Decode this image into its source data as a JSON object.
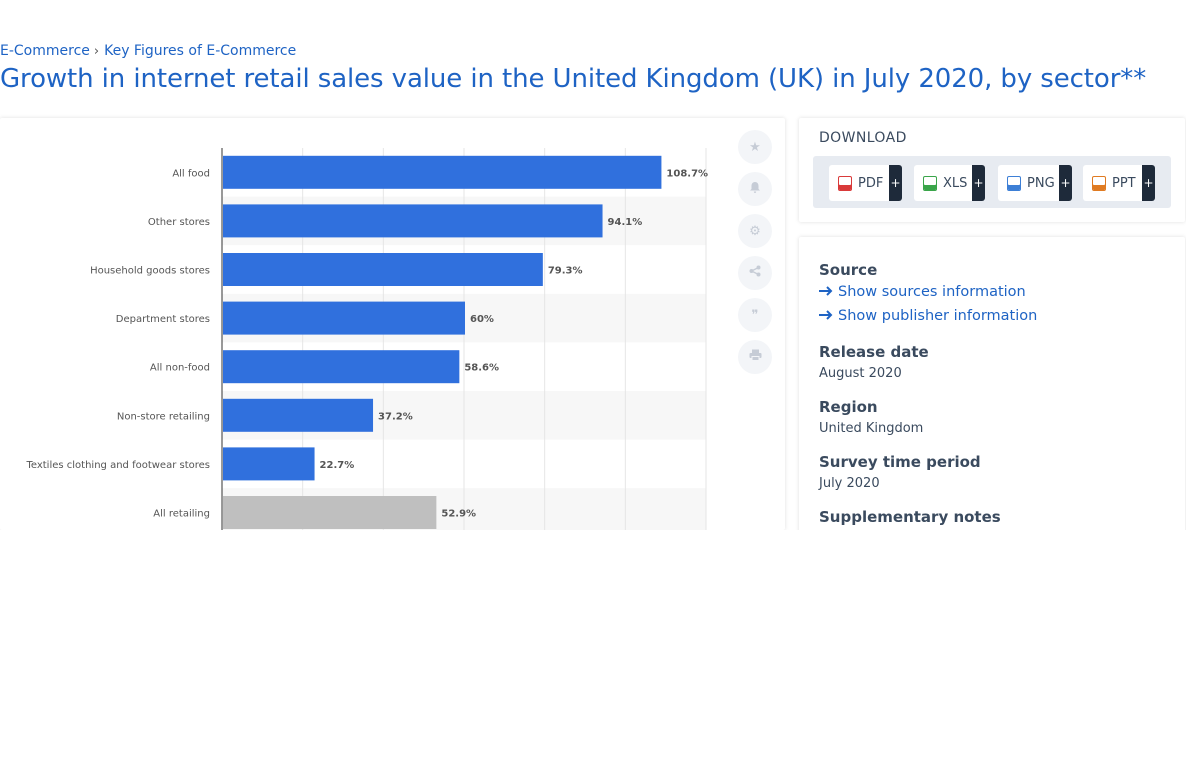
{
  "breadcrumb": {
    "items": [
      "E-Commerce",
      "Key Figures of E-Commerce"
    ],
    "separator": "›"
  },
  "title": "Growth in internet retail sales value in the United Kingdom (UK) in July 2020, by sector**",
  "colors": {
    "link": "#1e63c4",
    "bar": "#3070dd",
    "bar_highlight": "#bfbfbf"
  },
  "chart_data": {
    "type": "bar",
    "orientation": "horizontal",
    "categories": [
      "All food",
      "Other stores",
      "Household goods stores",
      "Department stores",
      "All non-food",
      "Non-store retailing",
      "Textiles clothing and footwear stores",
      "All retailing"
    ],
    "values": [
      108.7,
      94.1,
      79.3,
      60,
      58.6,
      37.2,
      22.7,
      52.9
    ],
    "data_labels": [
      "108.7%",
      "94.1%",
      "79.3%",
      "60%",
      "58.6%",
      "37.2%",
      "22.7%",
      "52.9%"
    ],
    "highlight_category": "All retailing",
    "xlim": [
      0,
      120
    ],
    "grid": true
  },
  "tools": [
    {
      "name": "favorite-icon",
      "glyph": "★"
    },
    {
      "name": "bell-icon",
      "glyph": "🔔"
    },
    {
      "name": "gear-icon",
      "glyph": "⚙"
    },
    {
      "name": "share-icon",
      "glyph": "⋖"
    },
    {
      "name": "quote-icon",
      "glyph": "❞"
    },
    {
      "name": "print-icon",
      "glyph": "⎙"
    }
  ],
  "download": {
    "title": "DOWNLOAD",
    "buttons": [
      {
        "label": "PDF",
        "icon": "pdf-file-icon",
        "color": "#d93a3a",
        "plus": "+"
      },
      {
        "label": "XLS",
        "icon": "xls-file-icon",
        "color": "#3aa54a",
        "plus": "+"
      },
      {
        "label": "PNG",
        "icon": "png-file-icon",
        "color": "#3d7fd6",
        "plus": "+"
      },
      {
        "label": "PPT",
        "icon": "ppt-file-icon",
        "color": "#e07b22",
        "plus": "+"
      }
    ]
  },
  "info": {
    "source_label": "Source",
    "sources_link": "Show sources information",
    "publisher_link": "Show publisher information",
    "release_label": "Release date",
    "release_value": "August 2020",
    "region_label": "Region",
    "region_value": "United Kingdom",
    "period_label": "Survey time period",
    "period_value": "July 2020",
    "notes_label": "Supplementary notes"
  }
}
